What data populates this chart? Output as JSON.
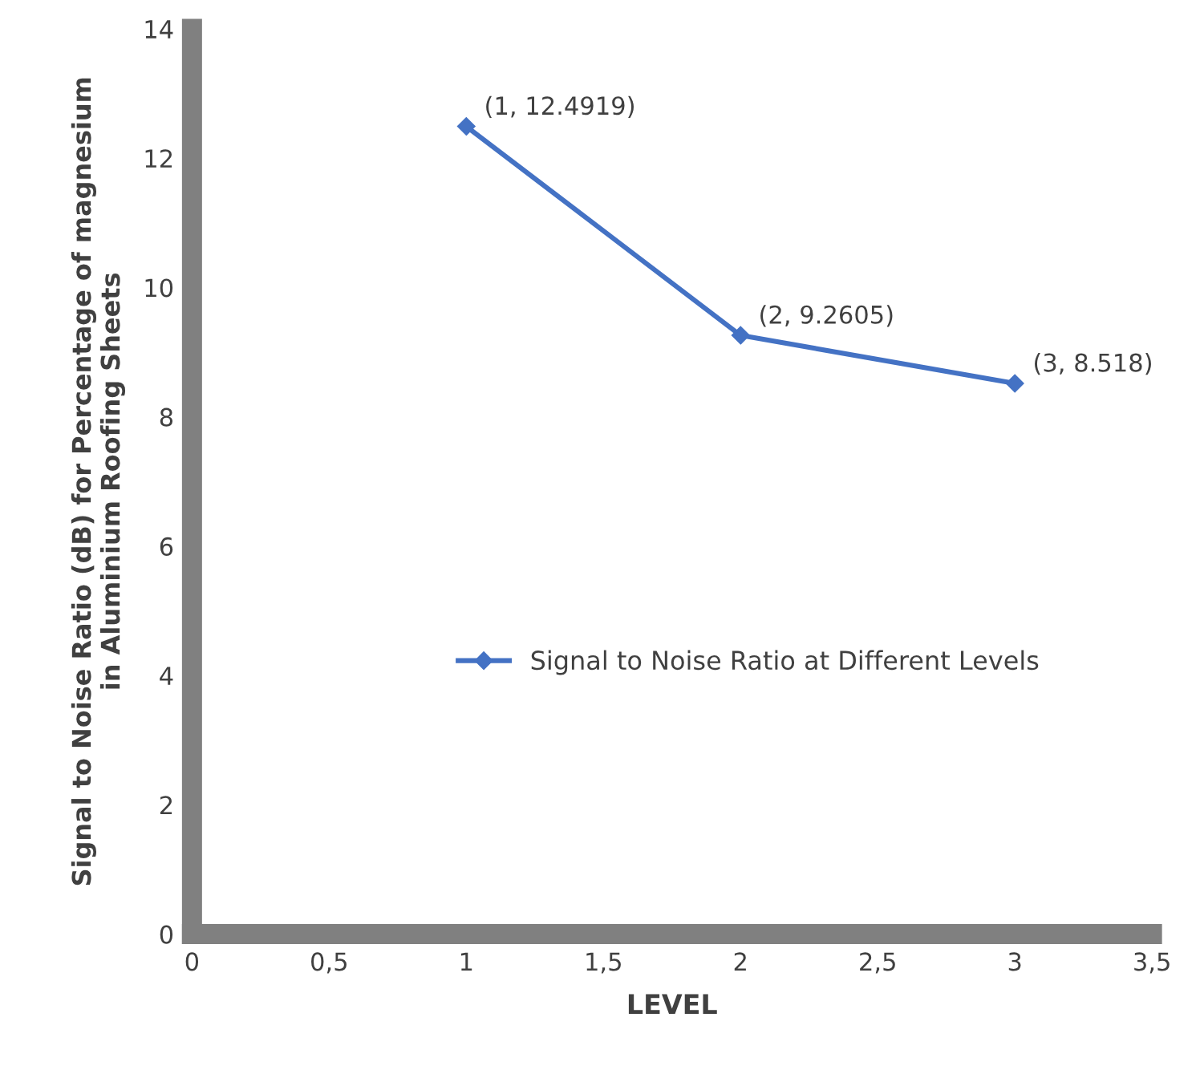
{
  "chart_data": {
    "type": "line",
    "xlabel": "LEVEL",
    "ylabel": "Signal to Noise Ratio (dB) for Percentage of magnesium\nin Aluminium Roofing Sheets",
    "x": [
      1,
      2,
      3
    ],
    "series": [
      {
        "name": "Signal to Noise Ratio at Different Levels",
        "color": "#4472c4",
        "values": [
          12.4919,
          9.2605,
          8.518
        ],
        "value_labels": [
          "(1, 12.4919)",
          "(2, 9.2605)",
          "(3, 8.518)"
        ]
      }
    ],
    "xlim": [
      0,
      3.5
    ],
    "xticks": [
      0,
      {
        "value": 0.5,
        "label": "0,5"
      },
      1,
      {
        "value": 1.5,
        "label": "1,5"
      },
      2,
      {
        "value": 2.5,
        "label": "2,5"
      },
      3,
      {
        "value": 3.5,
        "label": "3,5"
      }
    ],
    "ylim": [
      0,
      14
    ],
    "yticks": [
      0,
      2,
      4,
      6,
      8,
      10,
      12,
      14
    ],
    "legend": "center",
    "marker": "diamond",
    "line_style": "solid",
    "grid": false
  }
}
